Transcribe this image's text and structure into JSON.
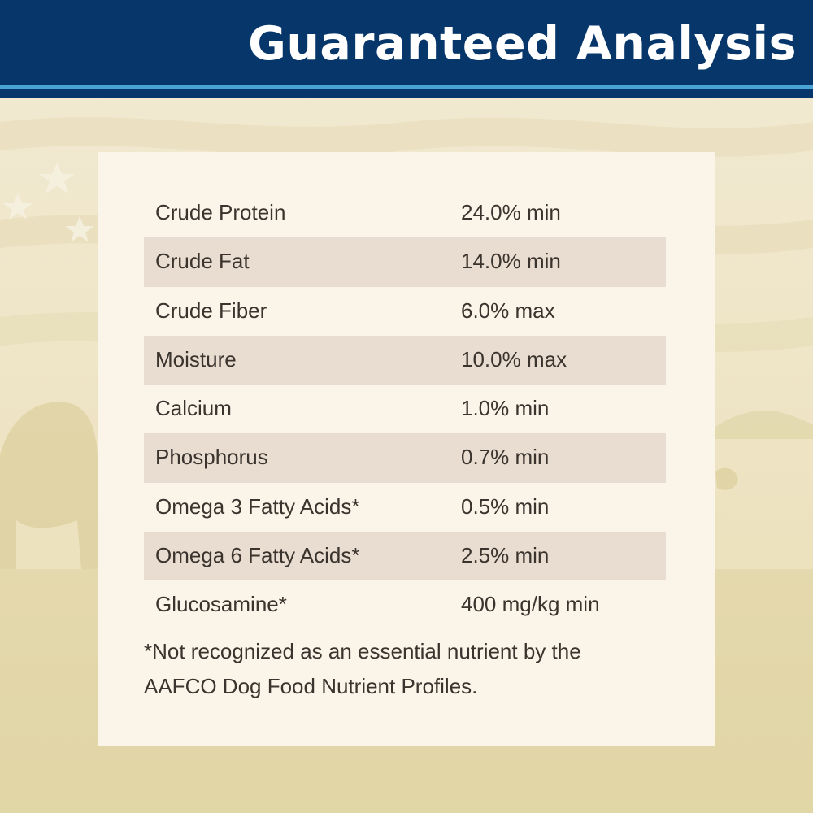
{
  "header": {
    "title": "Guaranteed Analysis"
  },
  "analysis": {
    "rows": [
      {
        "nutrient": "Crude Protein",
        "amount": "24.0% min"
      },
      {
        "nutrient": "Crude Fat",
        "amount": "14.0% min"
      },
      {
        "nutrient": "Crude Fiber",
        "amount": "6.0% max"
      },
      {
        "nutrient": "Moisture",
        "amount": "10.0% max"
      },
      {
        "nutrient": "Calcium",
        "amount": "1.0% min"
      },
      {
        "nutrient": "Phosphorus",
        "amount": "0.7% min"
      },
      {
        "nutrient": "Omega 3 Fatty Acids*",
        "amount": "0.5% min"
      },
      {
        "nutrient": "Omega 6 Fatty Acids*",
        "amount": "2.5% min"
      },
      {
        "nutrient": "Glucosamine*",
        "amount": "400 mg/kg min"
      }
    ]
  },
  "footnote": {
    "line1": "*Not recognized as an essential nutrient by the",
    "line2": "AAFCO Dog Food Nutrient Profiles."
  },
  "colors": {
    "header": "#07376a",
    "header_stripe": "#49a4d4",
    "panel": "#fbf6ea",
    "shaded_row": "#e8ddd0",
    "text": "#3b332d",
    "background": "#efe7c8"
  }
}
